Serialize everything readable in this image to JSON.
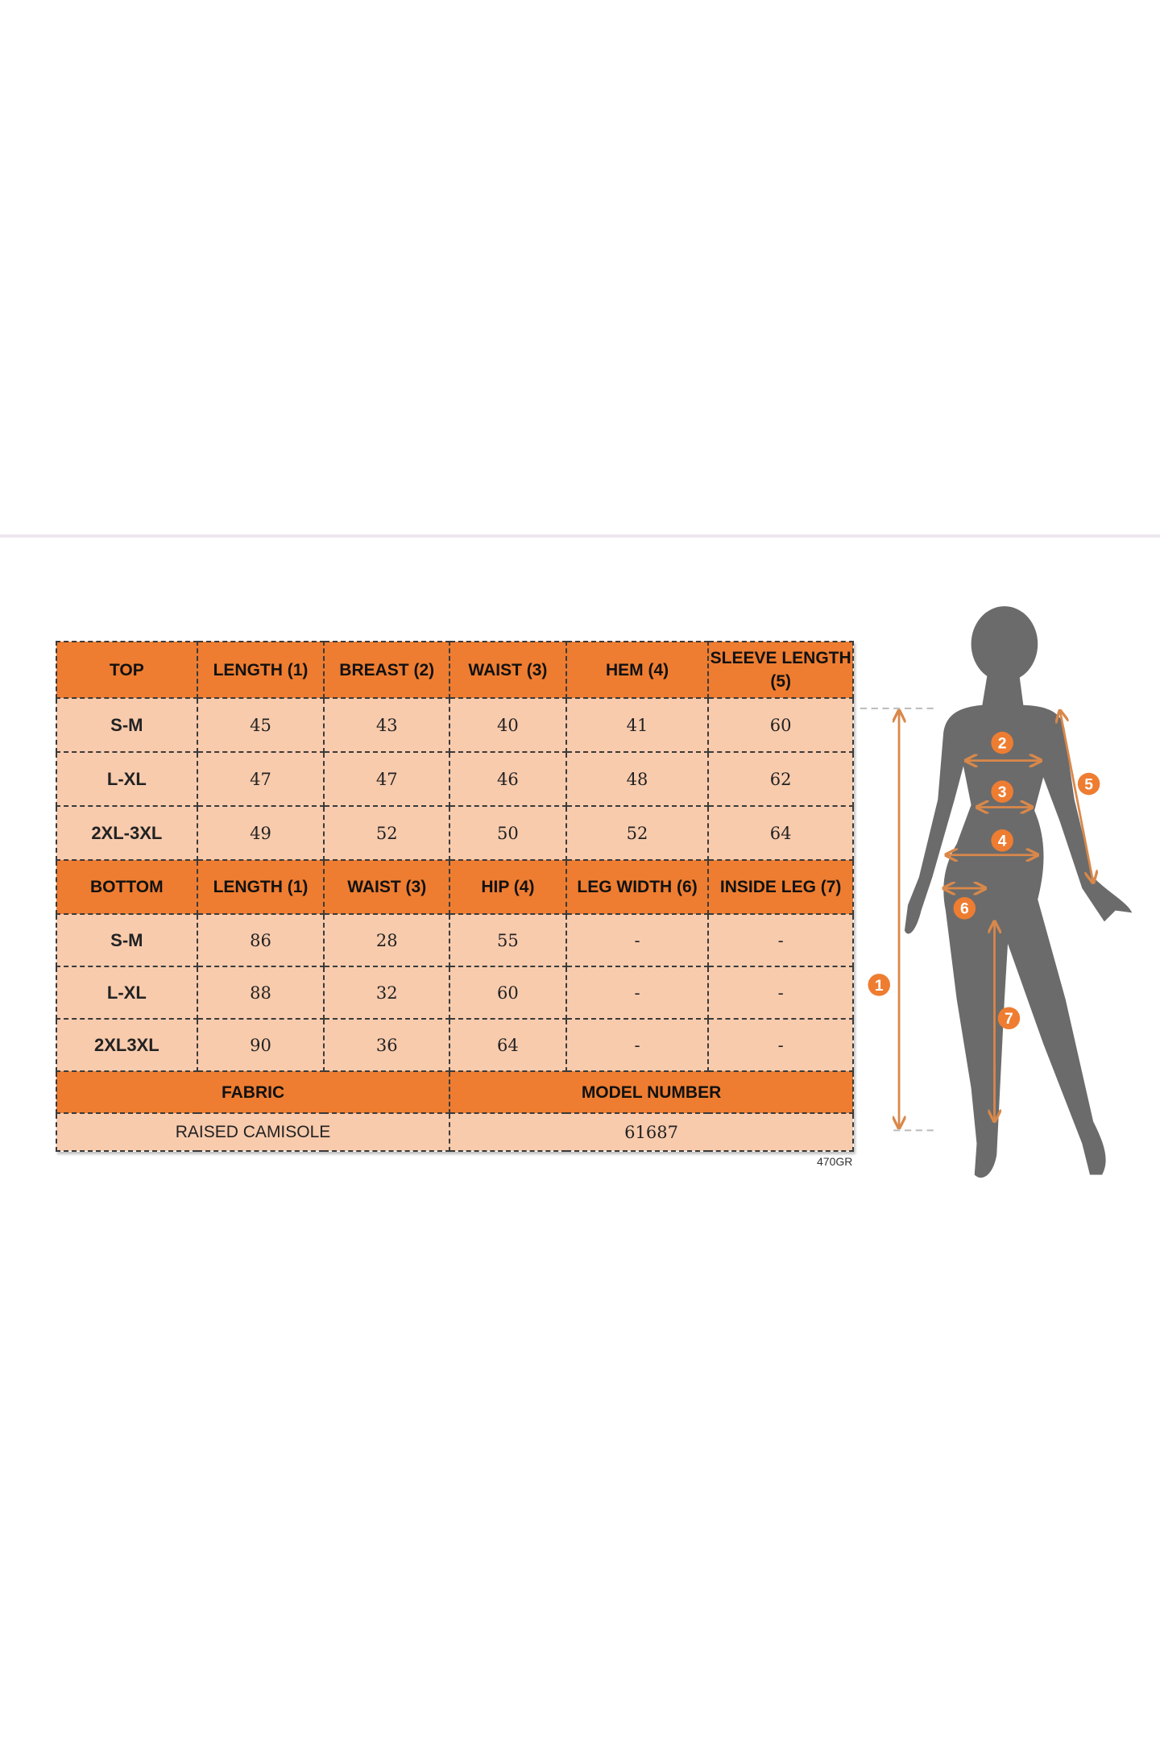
{
  "top_table": {
    "headers": [
      "TOP",
      "LENGTH (1)",
      "BREAST (2)",
      "WAIST (3)",
      "HEM (4)",
      "SLEEVE LENGTH (5)"
    ],
    "rows": [
      [
        "S-M",
        "45",
        "43",
        "40",
        "41",
        "60"
      ],
      [
        "L-XL",
        "47",
        "47",
        "46",
        "48",
        "62"
      ],
      [
        "2XL-3XL",
        "49",
        "52",
        "50",
        "52",
        "64"
      ]
    ]
  },
  "bottom_table": {
    "headers": [
      "BOTTOM",
      "LENGTH (1)",
      "WAIST (3)",
      "HIP (4)",
      "LEG WIDTH (6)",
      "INSIDE LEG (7)"
    ],
    "rows": [
      [
        "S-M",
        "86",
        "28",
        "55",
        "-",
        "-"
      ],
      [
        "L-XL",
        "88",
        "32",
        "60",
        "-",
        "-"
      ],
      [
        "2XL3XL",
        "90",
        "36",
        "64",
        "-",
        "-"
      ]
    ]
  },
  "info": {
    "fabric_label": "FABRIC",
    "model_label": "MODEL NUMBER",
    "fabric_value": "RAISED CAMISOLE",
    "model_value": "61687"
  },
  "code": "470GR",
  "figure": {
    "markers": [
      "1",
      "2",
      "3",
      "4",
      "5",
      "6",
      "7"
    ],
    "colors": {
      "accent": "#EE7D31",
      "cell": "#F8CBAD",
      "silhouette": "#6b6b6b",
      "arrow": "#D9884A"
    }
  }
}
